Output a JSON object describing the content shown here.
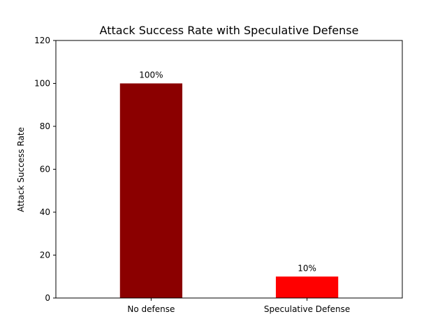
{
  "chart_data": {
    "type": "bar",
    "title": "Attack Success Rate with Speculative Defense",
    "xlabel": "",
    "ylabel": "Attack Success Rate",
    "categories": [
      "No defense",
      "Speculative Defense"
    ],
    "values": [
      100,
      10
    ],
    "data_labels": [
      "100%",
      "10%"
    ],
    "colors": [
      "#8b0000",
      "#ff0000"
    ],
    "ylim": [
      0,
      120
    ],
    "yticks": [
      0,
      20,
      40,
      60,
      80,
      100,
      120
    ],
    "grid": false,
    "legend": "none"
  }
}
